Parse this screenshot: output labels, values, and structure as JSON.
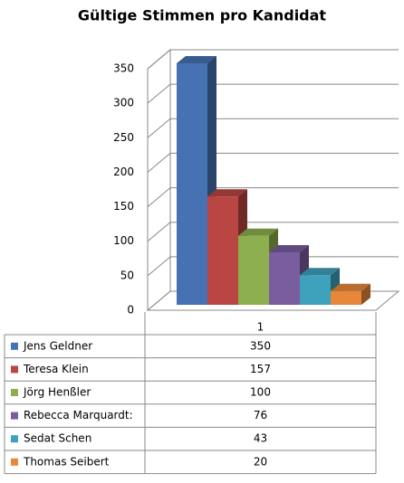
{
  "chart_data": {
    "type": "bar3d",
    "title": "Gültige Stimmen pro Kandidat",
    "categories": [
      "1"
    ],
    "series": [
      {
        "name": "Jens Geldner",
        "color": "#4672b4",
        "values": [
          350
        ]
      },
      {
        "name": "Teresa Klein",
        "color": "#b94643",
        "values": [
          157
        ]
      },
      {
        "name": "Jörg Henßler",
        "color": "#8eaf4f",
        "values": [
          100
        ]
      },
      {
        "name": "Rebecca Marquardt:",
        "color": "#7a5d9f",
        "values": [
          76
        ]
      },
      {
        "name": "Sedat Schen",
        "color": "#3fa2bc",
        "values": [
          43
        ]
      },
      {
        "name": "Thomas Seibert",
        "color": "#e6873a",
        "values": [
          20
        ]
      }
    ],
    "ylim": [
      0,
      350
    ],
    "yticks": [
      0,
      50,
      100,
      150,
      200,
      250,
      300,
      350
    ],
    "grid": true,
    "data_table": true
  }
}
